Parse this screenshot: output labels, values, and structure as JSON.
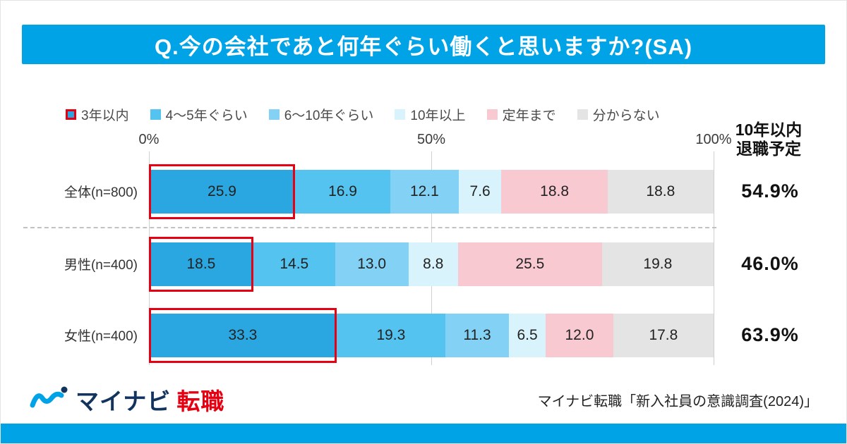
{
  "colors": {
    "brand_blue": "#00a3e6",
    "highlight_red": "#e60012",
    "logo_navy": "#13335f",
    "segment_colors": [
      "#2aa7e0",
      "#55c3f0",
      "#83d2f5",
      "#d8f3fc",
      "#f9c9d2",
      "#e4e4e4"
    ]
  },
  "header": {
    "title": "Q.今の会社であと何年ぐらい働くと思いますか?(SA)"
  },
  "chart_data": {
    "type": "bar",
    "variant": "horizontal-stacked-100",
    "title": "Q.今の会社であと何年ぐらい働くと思いますか?(SA)",
    "legend": [
      "3年以内",
      "4〜5年ぐらい",
      "6〜10年ぐらい",
      "10年以上",
      "定年まで",
      "分からない"
    ],
    "legend_position": "top",
    "grid": true,
    "x_ticks": [
      "0%",
      "50%",
      "100%"
    ],
    "xlim": [
      0,
      100
    ],
    "categories": [
      "全体(n=800)",
      "男性(n=400)",
      "女性(n=400)"
    ],
    "series": [
      {
        "name": "3年以内",
        "values": [
          25.9,
          18.5,
          33.3
        ]
      },
      {
        "name": "4〜5年ぐらい",
        "values": [
          16.9,
          14.5,
          19.3
        ]
      },
      {
        "name": "6〜10年ぐらい",
        "values": [
          12.1,
          13.0,
          11.3
        ]
      },
      {
        "name": "10年以上",
        "values": [
          7.6,
          8.8,
          6.5
        ]
      },
      {
        "name": "定年まで",
        "values": [
          18.8,
          25.5,
          12.0
        ]
      },
      {
        "name": "分からない",
        "values": [
          18.8,
          19.8,
          17.8
        ]
      }
    ],
    "highlighted_series": "3年以内",
    "right_column": {
      "header_line1": "10年以内",
      "header_line2": "退職予定",
      "values": [
        "54.9%",
        "46.0%",
        "63.9%"
      ]
    }
  },
  "footer": {
    "logo": {
      "icon": "mynavi-wave-logo-icon",
      "text": "マイナビ",
      "suffix": "転職"
    },
    "source": "マイナビ転職「新入社員の意識調査(2024)」"
  }
}
